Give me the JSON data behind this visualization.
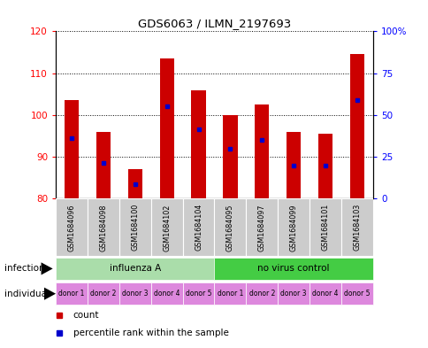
{
  "title": "GDS6063 / ILMN_2197693",
  "samples": [
    "GSM1684096",
    "GSM1684098",
    "GSM1684100",
    "GSM1684102",
    "GSM1684104",
    "GSM1684095",
    "GSM1684097",
    "GSM1684099",
    "GSM1684101",
    "GSM1684103"
  ],
  "bar_values": [
    103.5,
    96.0,
    87.0,
    113.5,
    106.0,
    100.0,
    102.5,
    96.0,
    95.5,
    114.5
  ],
  "blue_values": [
    94.5,
    88.5,
    83.5,
    102.0,
    96.5,
    92.0,
    94.0,
    88.0,
    88.0,
    103.5
  ],
  "ymin": 80,
  "ymax": 120,
  "yticks_left": [
    80,
    90,
    100,
    110,
    120
  ],
  "yticks_right": [
    0,
    25,
    50,
    75,
    100
  ],
  "bar_color": "#cc0000",
  "blue_color": "#0000cc",
  "inf_a_color": "#aaddaa",
  "no_virus_color": "#44cc44",
  "individual_color": "#dd88dd",
  "sample_bg_color": "#cccccc",
  "legend_count_color": "#cc0000",
  "legend_blue_color": "#0000cc",
  "individual_labels": [
    "donor 1",
    "donor 2",
    "donor 3",
    "donor 4",
    "donor 5",
    "donor 1",
    "donor 2",
    "donor 3",
    "donor 4",
    "donor 5"
  ]
}
